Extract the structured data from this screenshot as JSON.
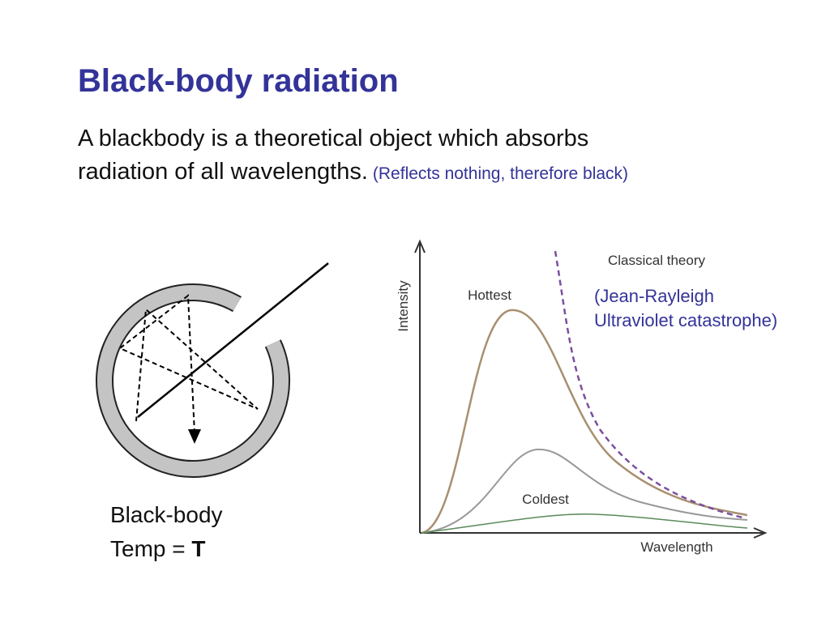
{
  "header": {
    "title": "Black-body radiation"
  },
  "body": {
    "line1": "A blackbody is a theoretical object which absorbs",
    "line2": "radiation of all wavelengths.",
    "note": "(Reflects nothing, therefore black)"
  },
  "cavity": {
    "label": "Black-body",
    "temp_prefix": "Temp =",
    "temp_symbol": "T"
  },
  "graph": {
    "y_axis": "Intensity",
    "x_axis": "Wavelength",
    "hottest": "Hottest",
    "coldest": "Coldest",
    "classical": "Classical theory",
    "annotation": [
      "(Jean-Rayleigh",
      "Ultraviolet catastrophe)"
    ]
  }
}
